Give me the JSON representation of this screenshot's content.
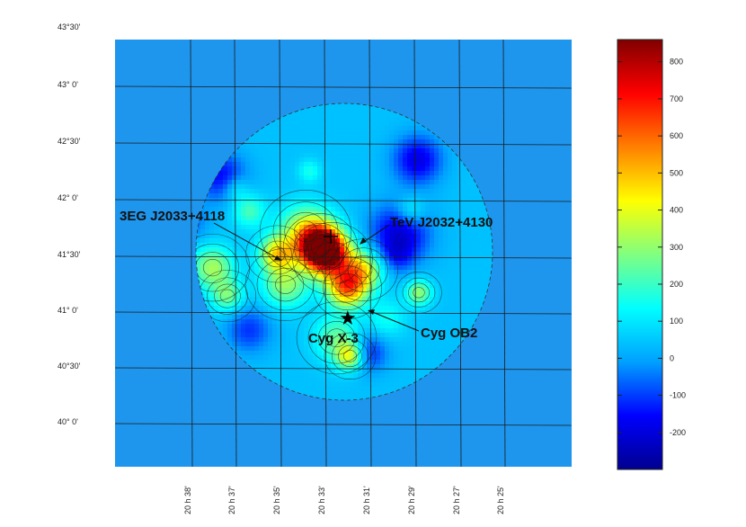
{
  "chart_data": {
    "type": "heatmap",
    "title": "",
    "xlabel": "",
    "ylabel": "",
    "ra_ticks": [
      "20 h 38'",
      "20 h 37'",
      "20 h 35'",
      "20 h 33'",
      "20 h 31'",
      "20 h 29'",
      "20 h 27'",
      "20 h 25'"
    ],
    "dec_ticks": [
      "43°30'",
      "43° 0'",
      "42°30'",
      "42° 0'",
      "41°30'",
      "41° 0'",
      "40°30'",
      "40° 0'"
    ],
    "colorbar": {
      "min": -300,
      "max": 860,
      "ticks": [
        800,
        700,
        600,
        500,
        400,
        300,
        200,
        100,
        0,
        -100,
        -200
      ],
      "colormap": [
        "#00008f",
        "#0000ff",
        "#00a0ff",
        "#00ffff",
        "#80ff80",
        "#ffff00",
        "#ff8000",
        "#ff0000",
        "#800000"
      ]
    },
    "annotations": [
      {
        "label": "3EG J2033+4118",
        "marker": "arrow"
      },
      {
        "label": "TeV J2032+4130",
        "marker": "arrow"
      },
      {
        "label": "Cyg X-3",
        "marker": "star"
      },
      {
        "label": "Cyg OB2",
        "marker": "arrow"
      }
    ],
    "blobs": [
      {
        "ra_h": 20.537,
        "dec": 41.58,
        "peak": 860,
        "sigma_deg": 0.13
      },
      {
        "ra_h": 20.528,
        "dec": 41.48,
        "peak": 420,
        "sigma_deg": 0.14
      },
      {
        "ra_h": 20.517,
        "dec": 41.22,
        "peak": 520,
        "sigma_deg": 0.12
      },
      {
        "ra_h": 20.505,
        "dec": 41.38,
        "peak": 330,
        "sigma_deg": 0.12
      },
      {
        "ra_h": 20.569,
        "dec": 41.52,
        "peak": 380,
        "sigma_deg": 0.11
      },
      {
        "ra_h": 20.548,
        "dec": 41.72,
        "peak": 320,
        "sigma_deg": 0.16
      },
      {
        "ra_h": 20.563,
        "dec": 41.25,
        "peak": 260,
        "sigma_deg": 0.14
      },
      {
        "ra_h": 20.515,
        "dec": 40.62,
        "peak": 360,
        "sigma_deg": 0.09
      },
      {
        "ra_h": 20.525,
        "dec": 40.78,
        "peak": 200,
        "sigma_deg": 0.14
      },
      {
        "ra_h": 20.617,
        "dec": 41.4,
        "peak": 280,
        "sigma_deg": 0.13
      },
      {
        "ra_h": 20.606,
        "dec": 41.15,
        "peak": 220,
        "sigma_deg": 0.1
      },
      {
        "ra_h": 20.59,
        "dec": 41.9,
        "peak": 180,
        "sigma_deg": 0.1
      },
      {
        "ra_h": 20.464,
        "dec": 41.18,
        "peak": 260,
        "sigma_deg": 0.08
      },
      {
        "ra_h": 20.47,
        "dec": 41.9,
        "peak": 140,
        "sigma_deg": 0.09
      },
      {
        "ra_h": 20.488,
        "dec": 40.95,
        "peak": 110,
        "sigma_deg": 0.12
      },
      {
        "ra_h": 20.6,
        "dec": 42.1,
        "peak": 120,
        "sigma_deg": 0.08
      },
      {
        "ra_h": 20.545,
        "dec": 42.25,
        "peak": 120,
        "sigma_deg": 0.07
      },
      {
        "ra_h": 20.478,
        "dec": 41.7,
        "peak": -250,
        "sigma_deg": 0.18
      },
      {
        "ra_h": 20.465,
        "dec": 42.35,
        "peak": -230,
        "sigma_deg": 0.15
      },
      {
        "ra_h": 20.61,
        "dec": 42.2,
        "peak": -200,
        "sigma_deg": 0.15
      },
      {
        "ra_h": 20.59,
        "dec": 40.85,
        "peak": -150,
        "sigma_deg": 0.14
      },
      {
        "ra_h": 20.502,
        "dec": 40.65,
        "peak": -180,
        "sigma_deg": 0.12
      },
      {
        "ra_h": 20.48,
        "dec": 41.5,
        "peak": -100,
        "sigma_deg": 0.1
      },
      {
        "ra_h": 20.635,
        "dec": 41.8,
        "peak": -110,
        "sigma_deg": 0.12
      }
    ]
  }
}
